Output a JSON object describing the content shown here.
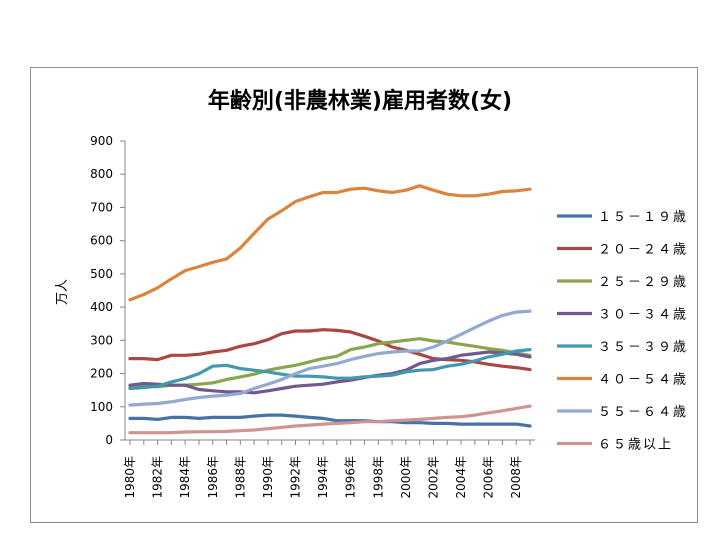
{
  "chart_data": {
    "type": "line",
    "title": "年齢別(非農林業)雇用者数(女)",
    "ylabel": "万人",
    "xlabel": "",
    "ylim": [
      0,
      900
    ],
    "yticks": [
      0,
      100,
      200,
      300,
      400,
      500,
      600,
      700,
      800,
      900
    ],
    "grid": false,
    "legend": "right",
    "x": [
      1980,
      1981,
      1982,
      1983,
      1984,
      1985,
      1986,
      1987,
      1988,
      1989,
      1990,
      1991,
      1992,
      1993,
      1994,
      1995,
      1996,
      1997,
      1998,
      1999,
      2000,
      2001,
      2002,
      2003,
      2004,
      2005,
      2006,
      2007,
      2008,
      2009
    ],
    "xtick_labels": [
      "1980年",
      "1982年",
      "1984年",
      "1986年",
      "1988年",
      "1990年",
      "1992年",
      "1994年",
      "1996年",
      "1998年",
      "2000年",
      "2002年",
      "2004年",
      "2006年",
      "2008年"
    ],
    "xtick_years": [
      1980,
      1982,
      1984,
      1986,
      1988,
      1990,
      1992,
      1994,
      1996,
      1998,
      2000,
      2002,
      2004,
      2006,
      2008
    ],
    "series": [
      {
        "name": "１５－１９歳",
        "color": "#4572a7",
        "values": [
          65,
          65,
          62,
          68,
          68,
          65,
          68,
          68,
          68,
          72,
          75,
          75,
          72,
          68,
          65,
          58,
          58,
          58,
          55,
          55,
          52,
          52,
          50,
          50,
          48,
          48,
          48,
          48,
          48,
          42
        ]
      },
      {
        "name": "２０－２４歳",
        "color": "#aa4643",
        "values": [
          245,
          245,
          242,
          255,
          255,
          258,
          265,
          270,
          282,
          290,
          302,
          320,
          328,
          328,
          332,
          330,
          325,
          312,
          298,
          280,
          270,
          258,
          245,
          242,
          240,
          235,
          228,
          222,
          218,
          212
        ]
      },
      {
        "name": "２５－２９歳",
        "color": "#89a54e",
        "values": [
          160,
          162,
          160,
          165,
          165,
          168,
          172,
          182,
          190,
          198,
          210,
          218,
          225,
          235,
          245,
          252,
          272,
          280,
          290,
          295,
          300,
          305,
          298,
          295,
          288,
          282,
          275,
          270,
          262,
          255
        ]
      },
      {
        "name": "３０－３４歳",
        "color": "#71588f",
        "values": [
          165,
          170,
          168,
          165,
          165,
          152,
          148,
          145,
          145,
          142,
          148,
          155,
          162,
          165,
          168,
          175,
          180,
          188,
          195,
          200,
          210,
          230,
          240,
          245,
          255,
          260,
          265,
          262,
          258,
          250
        ]
      },
      {
        "name": "３５－３９歳",
        "color": "#4198af",
        "values": [
          155,
          158,
          162,
          175,
          185,
          200,
          222,
          225,
          215,
          210,
          205,
          198,
          192,
          192,
          190,
          186,
          186,
          190,
          192,
          195,
          205,
          210,
          212,
          222,
          228,
          238,
          250,
          258,
          268,
          272
        ]
      },
      {
        "name": "４０－５４歳",
        "color": "#db843d",
        "values": [
          422,
          438,
          458,
          485,
          510,
          522,
          535,
          545,
          578,
          622,
          665,
          690,
          718,
          732,
          745,
          745,
          755,
          758,
          750,
          745,
          752,
          765,
          752,
          740,
          735,
          735,
          740,
          748,
          750,
          755
        ]
      },
      {
        "name": "５５－６４歳",
        "color": "#93a9cf",
        "values": [
          105,
          108,
          110,
          115,
          122,
          128,
          132,
          135,
          140,
          155,
          168,
          182,
          200,
          215,
          222,
          230,
          242,
          252,
          260,
          265,
          268,
          268,
          280,
          298,
          318,
          338,
          358,
          375,
          385,
          388
        ]
      },
      {
        "name": "６５歳以上",
        "color": "#d19392",
        "values": [
          22,
          22,
          22,
          22,
          24,
          25,
          25,
          26,
          28,
          30,
          34,
          38,
          42,
          45,
          48,
          50,
          52,
          55,
          55,
          58,
          60,
          62,
          65,
          68,
          70,
          75,
          82,
          88,
          95,
          102
        ]
      }
    ]
  }
}
